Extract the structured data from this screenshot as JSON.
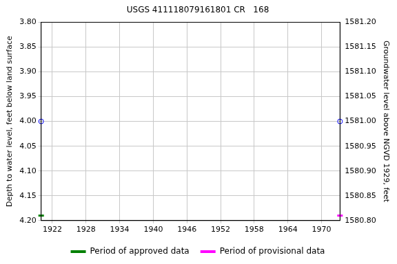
{
  "chart_data": {
    "type": "scatter",
    "title": "USGS 411118079161801 CR   168",
    "x_label": null,
    "y_label": "Depth to water level, feet below land surface",
    "y2_label": "Groundwater level above NGVD 1929, feet",
    "x": [
      1920,
      1973.3
    ],
    "series": [
      {
        "color": "#0000ff",
        "marker": "circle",
        "values": [
          4.0,
          4.0
        ]
      },
      {
        "name": "Period of approved data",
        "color": "#008000",
        "marker": "line",
        "values": [
          4.19,
          null
        ]
      },
      {
        "name": "Period of provisional data",
        "color": "#ff00ff",
        "marker": "line",
        "values": [
          null,
          4.19
        ]
      }
    ],
    "xlim": [
      1920,
      1973.3
    ],
    "xticks": [
      1922,
      1928,
      1934,
      1940,
      1946,
      1952,
      1958,
      1964,
      1970
    ],
    "ylim": [
      4.2,
      3.8
    ],
    "yticks": [
      {
        "value": 3.8,
        "label": "3.80"
      },
      3.85,
      {
        "value": 3.9,
        "label": "3.90"
      },
      3.95,
      {
        "value": 4.0,
        "label": "4.00"
      },
      4.05,
      {
        "value": 4.1,
        "label": "4.10"
      },
      4.15,
      {
        "value": 4.2,
        "label": "4.20"
      }
    ],
    "y2lim": [
      1580.8,
      1581.2
    ],
    "y2ticks": [
      {
        "value": 1580.8,
        "label": "1580.80"
      },
      1580.85,
      {
        "value": 1580.9,
        "label": "1580.90"
      },
      1580.95,
      {
        "value": 1581.0,
        "label": "1581.00"
      },
      1581.05,
      {
        "value": 1581.1,
        "label": "1581.10"
      },
      1581.15,
      {
        "value": 1581.2,
        "label": "1581.20"
      }
    ],
    "grid": true,
    "legend": "bottom"
  }
}
